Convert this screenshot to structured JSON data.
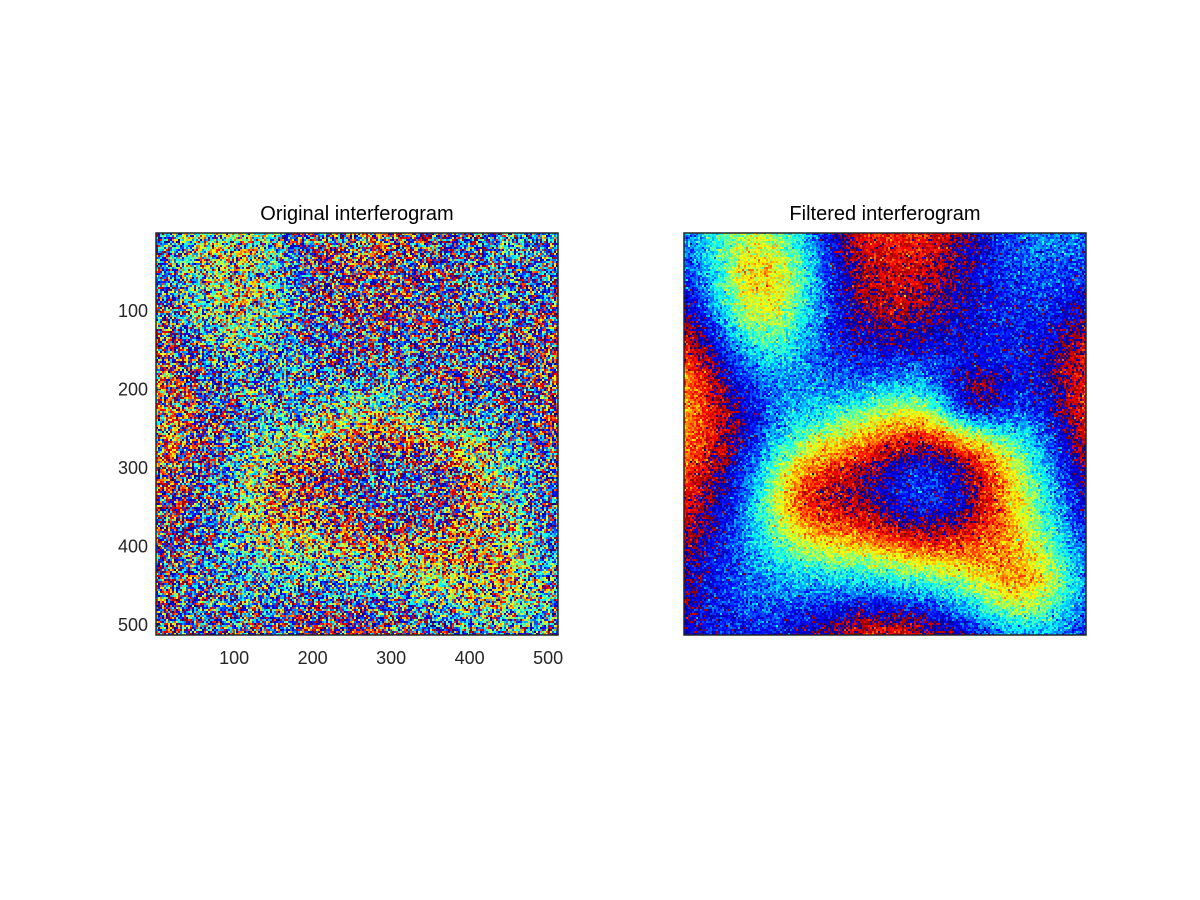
{
  "chart_data": [
    {
      "type": "heatmap",
      "title": "Original interferogram",
      "xlim": [
        1,
        512
      ],
      "ylim": [
        1,
        512
      ],
      "y_direction": "reversed",
      "xticks": [
        "100",
        "200",
        "300",
        "400",
        "500"
      ],
      "yticks": [
        "100",
        "200",
        "300",
        "400",
        "500"
      ],
      "colormap": "jet",
      "show_axes_ticks": true
    },
    {
      "type": "heatmap",
      "title": "Filtered interferogram",
      "xlim": [
        1,
        512
      ],
      "ylim": [
        1,
        512
      ],
      "y_direction": "reversed",
      "xticks": [],
      "yticks": [],
      "colormap": "jet",
      "show_axes_ticks": false
    }
  ],
  "colors": {
    "axes_border": "#262626",
    "tick_text": "#262626",
    "title_text": "#000000"
  }
}
